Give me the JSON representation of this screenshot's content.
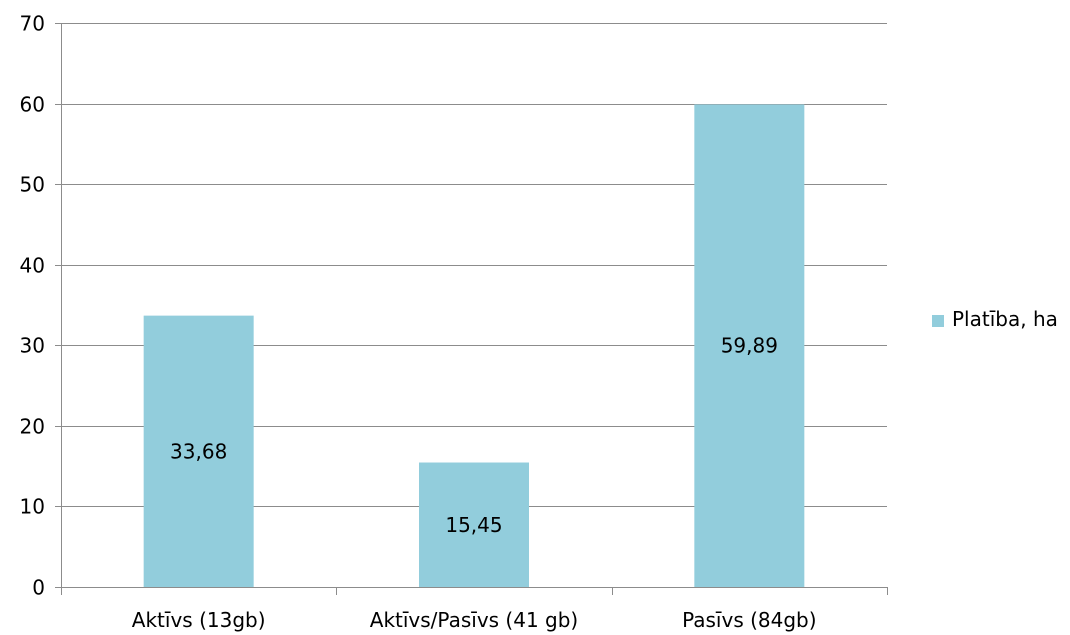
{
  "chart_data": {
    "type": "bar",
    "categories": [
      "Aktīvs (13gb)",
      "Aktīvs/Pasīvs (41 gb)",
      "Pasīvs (84gb)"
    ],
    "series": [
      {
        "name": "Platība, ha",
        "values": [
          33.68,
          15.45,
          59.89
        ],
        "data_labels": [
          "33,68",
          "15,45",
          "59,89"
        ],
        "color": "#92CDDC"
      }
    ],
    "ylim": [
      0,
      70
    ],
    "yticks": [
      0,
      10,
      20,
      30,
      40,
      50,
      60,
      70
    ],
    "ytick_labels": [
      "0",
      "10",
      "20",
      "30",
      "40",
      "50",
      "60",
      "70"
    ],
    "grid": "horizontal",
    "legend_position": "right",
    "title": "",
    "xlabel": "",
    "ylabel": ""
  },
  "colors": {
    "bar": "#92CDDC",
    "grid": "#8C8C8C",
    "axis": "#8C8C8C"
  }
}
